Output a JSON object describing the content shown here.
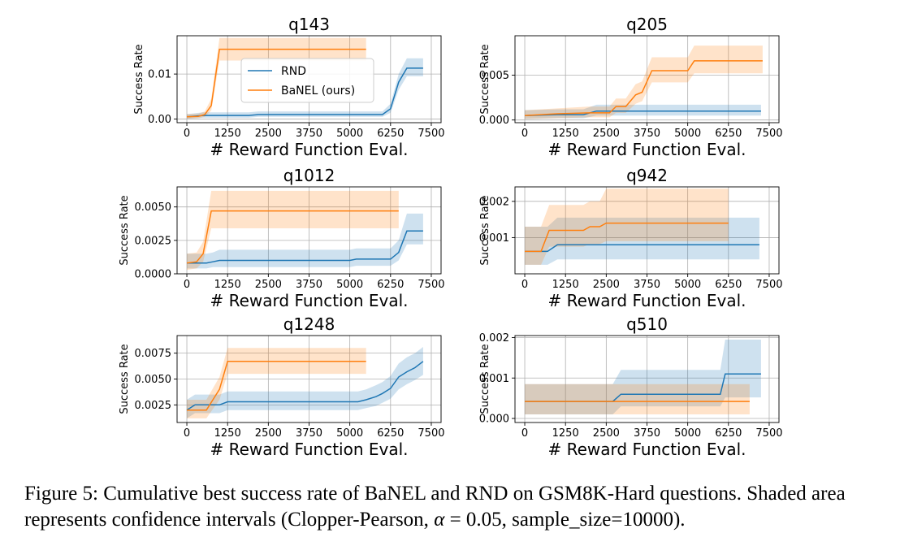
{
  "caption": {
    "label": "Figure 5:",
    "text_a": "Cumulative best success rate of BaNEL and RND on GSM8K-Hard questions. Shaded area represents confidence intervals (Clopper-Pearson, ",
    "alpha": "α",
    "text_b": " = 0.05, sample_size=10000)."
  },
  "colors": {
    "rnd": "#1f77b4",
    "banel": "#ff7f0e",
    "grid": "#b0b0b0"
  },
  "chart_data": [
    {
      "type": "line",
      "title": "q143",
      "xlabel": "# Reward Function Eval.",
      "ylabel": "Success Rate",
      "xlim": [
        -300,
        7800
      ],
      "ylim": [
        -0.0008,
        0.0185
      ],
      "xticks": [
        0,
        1250,
        2500,
        3750,
        5000,
        6250,
        7500
      ],
      "yticks": [
        0.0,
        0.01
      ],
      "ytick_labels": [
        "0.00",
        "0.01"
      ],
      "legend": {
        "position": "center",
        "entries": [
          "RND",
          "BaNEL (ours)"
        ]
      },
      "series": [
        {
          "name": "RND",
          "x": [
            0,
            500,
            1000,
            1900,
            2200,
            3000,
            4000,
            5000,
            6000,
            6250,
            6500,
            6750,
            7250
          ],
          "y": [
            0.0005,
            0.0008,
            0.0008,
            0.0008,
            0.001,
            0.001,
            0.001,
            0.001,
            0.001,
            0.0023,
            0.0082,
            0.0113,
            0.0113
          ],
          "lo": [
            0.0001,
            0.0003,
            0.0003,
            0.0003,
            0.0005,
            0.0005,
            0.0005,
            0.0005,
            0.0005,
            0.0014,
            0.0065,
            0.0095,
            0.0095
          ],
          "hi": [
            0.0011,
            0.0015,
            0.0015,
            0.0015,
            0.0017,
            0.0017,
            0.0017,
            0.0017,
            0.0017,
            0.0034,
            0.01,
            0.0135,
            0.0135
          ]
        },
        {
          "name": "BaNEL (ours)",
          "x": [
            0,
            350,
            550,
            750,
            1000,
            2000,
            3000,
            4000,
            5500
          ],
          "y": [
            0.0005,
            0.0006,
            0.001,
            0.003,
            0.0155,
            0.0155,
            0.0155,
            0.0155,
            0.0155
          ],
          "lo": [
            0.0001,
            0.0002,
            0.0005,
            0.0019,
            0.013,
            0.013,
            0.013,
            0.013,
            0.013
          ],
          "hi": [
            0.0011,
            0.0012,
            0.0017,
            0.0045,
            0.018,
            0.018,
            0.018,
            0.018,
            0.018
          ]
        }
      ]
    },
    {
      "type": "line",
      "title": "q205",
      "xlabel": "# Reward Function Eval.",
      "ylabel": "Success Rate",
      "xlim": [
        -300,
        7800
      ],
      "ylim": [
        -0.0003,
        0.0094
      ],
      "xticks": [
        0,
        1250,
        2500,
        3750,
        5000,
        6250,
        7500
      ],
      "yticks": [
        0.0,
        0.005
      ],
      "ytick_labels": [
        "0.000",
        "0.005"
      ],
      "series": [
        {
          "name": "RND",
          "x": [
            0,
            1000,
            1800,
            2200,
            2600,
            3000,
            7250
          ],
          "y": [
            0.0005,
            0.0006,
            0.0006,
            0.001,
            0.001,
            0.001,
            0.001
          ],
          "lo": [
            0.0001,
            0.0002,
            0.0002,
            0.0005,
            0.0005,
            0.0005,
            0.0005
          ],
          "hi": [
            0.0011,
            0.0012,
            0.0012,
            0.0017,
            0.0017,
            0.0017,
            0.0017
          ]
        },
        {
          "name": "BaNEL (ours)",
          "x": [
            0,
            1000,
            2000,
            2600,
            2800,
            3100,
            3400,
            3600,
            3900,
            4100,
            5000,
            5200,
            7300
          ],
          "y": [
            0.0005,
            0.0007,
            0.0008,
            0.0008,
            0.0015,
            0.0015,
            0.0028,
            0.0031,
            0.0055,
            0.0055,
            0.0055,
            0.0066,
            0.0066
          ],
          "lo": [
            0.0001,
            0.0002,
            0.0003,
            0.0003,
            0.0008,
            0.0008,
            0.0018,
            0.0021,
            0.0042,
            0.0042,
            0.0042,
            0.0052,
            0.0052
          ],
          "hi": [
            0.0011,
            0.0013,
            0.0015,
            0.0015,
            0.0024,
            0.0024,
            0.004,
            0.0043,
            0.007,
            0.007,
            0.007,
            0.0083,
            0.0083
          ]
        }
      ]
    },
    {
      "type": "line",
      "title": "q1012",
      "xlabel": "# Reward Function Eval.",
      "ylabel": "Success Rate",
      "xlim": [
        -300,
        7800
      ],
      "ylim": [
        0.0,
        0.0065
      ],
      "xticks": [
        0,
        1250,
        2500,
        3750,
        5000,
        6250,
        7500
      ],
      "yticks": [
        0.0,
        0.0025,
        0.005
      ],
      "ytick_labels": [
        "0.0000",
        "0.0025",
        "0.0050"
      ],
      "series": [
        {
          "name": "RND",
          "x": [
            0,
            600,
            800,
            1000,
            5000,
            5200,
            6250,
            6500,
            6750,
            7250
          ],
          "y": [
            0.0008,
            0.0008,
            0.0009,
            0.001,
            0.001,
            0.0011,
            0.0011,
            0.0016,
            0.0032,
            0.0032
          ],
          "lo": [
            0.0004,
            0.0004,
            0.0005,
            0.0005,
            0.0005,
            0.0006,
            0.0006,
            0.001,
            0.0022,
            0.0022
          ],
          "hi": [
            0.0015,
            0.0015,
            0.0016,
            0.0018,
            0.0018,
            0.0019,
            0.0019,
            0.0025,
            0.0045,
            0.0045
          ]
        },
        {
          "name": "BaNEL (ours)",
          "x": [
            0,
            300,
            500,
            750,
            2000,
            4000,
            6500
          ],
          "y": [
            0.0008,
            0.0009,
            0.0015,
            0.0047,
            0.0047,
            0.0047,
            0.0047
          ],
          "lo": [
            0.0003,
            0.0004,
            0.0009,
            0.0034,
            0.0034,
            0.0034,
            0.0034
          ],
          "hi": [
            0.0015,
            0.0016,
            0.0024,
            0.0062,
            0.0062,
            0.0062,
            0.0062
          ]
        }
      ]
    },
    {
      "type": "line",
      "title": "q942",
      "xlabel": "# Reward Function Eval.",
      "ylabel": "Success Rate",
      "xlim": [
        -300,
        7800
      ],
      "ylim": [
        0.0,
        0.0024
      ],
      "xticks": [
        0,
        1250,
        2500,
        3750,
        5000,
        6250,
        7500
      ],
      "yticks": [
        0.001,
        0.002
      ],
      "ytick_labels": [
        "0.001",
        "0.002"
      ],
      "series": [
        {
          "name": "RND",
          "x": [
            0,
            700,
            1000,
            1500,
            2500,
            5000,
            7200
          ],
          "y": [
            0.00062,
            0.00062,
            0.0008,
            0.0008,
            0.0008,
            0.0008,
            0.0008
          ],
          "lo": [
            0.00025,
            0.00025,
            0.0004,
            0.0004,
            0.0004,
            0.0004,
            0.0004
          ],
          "hi": [
            0.0013,
            0.0013,
            0.00155,
            0.00155,
            0.00155,
            0.00155,
            0.00155
          ]
        },
        {
          "name": "BaNEL (ours)",
          "x": [
            0,
            500,
            750,
            1800,
            2000,
            2300,
            2500,
            2700,
            4000,
            6250
          ],
          "y": [
            0.00062,
            0.00062,
            0.0012,
            0.0012,
            0.0013,
            0.0013,
            0.0014,
            0.0014,
            0.0014,
            0.0014
          ],
          "lo": [
            0.00025,
            0.00025,
            0.00075,
            0.00075,
            0.00082,
            0.00082,
            0.0009,
            0.0009,
            0.0009,
            0.0009
          ],
          "hi": [
            0.0013,
            0.0013,
            0.0019,
            0.0019,
            0.002,
            0.002,
            0.00235,
            0.00235,
            0.00235,
            0.00235
          ]
        }
      ]
    },
    {
      "type": "line",
      "title": "q1248",
      "xlabel": "# Reward Function Eval.",
      "ylabel": "Success Rate",
      "xlim": [
        -300,
        7800
      ],
      "ylim": [
        0.0008,
        0.0092
      ],
      "xticks": [
        0,
        1250,
        2500,
        3750,
        5000,
        6250,
        7500
      ],
      "yticks": [
        0.0025,
        0.005,
        0.0075
      ],
      "ytick_labels": [
        "0.0025",
        "0.0050",
        "0.0075"
      ],
      "series": [
        {
          "name": "RND",
          "x": [
            0,
            250,
            1000,
            1250,
            2500,
            3750,
            5250,
            5500,
            5800,
            6000,
            6250,
            6500,
            6750,
            7000,
            7250
          ],
          "y": [
            0.002,
            0.0025,
            0.0025,
            0.0028,
            0.0028,
            0.0028,
            0.0028,
            0.003,
            0.0033,
            0.0036,
            0.0041,
            0.0052,
            0.0057,
            0.0061,
            0.0067
          ],
          "lo": [
            0.0012,
            0.0017,
            0.0017,
            0.002,
            0.002,
            0.002,
            0.002,
            0.0022,
            0.0024,
            0.0027,
            0.0031,
            0.004,
            0.0045,
            0.0049,
            0.0054
          ],
          "hi": [
            0.003,
            0.0035,
            0.0035,
            0.0038,
            0.0038,
            0.0038,
            0.0038,
            0.004,
            0.0044,
            0.0047,
            0.0053,
            0.0065,
            0.0071,
            0.0075,
            0.0081
          ]
        },
        {
          "name": "BaNEL (ours)",
          "x": [
            0,
            150,
            600,
            800,
            1000,
            1250,
            2000,
            4000,
            5500
          ],
          "y": [
            0.002,
            0.002,
            0.002,
            0.003,
            0.004,
            0.0067,
            0.0067,
            0.0067,
            0.0067
          ],
          "lo": [
            0.0012,
            0.0012,
            0.0012,
            0.0021,
            0.003,
            0.0055,
            0.0055,
            0.0055,
            0.0055
          ],
          "hi": [
            0.003,
            0.003,
            0.003,
            0.0041,
            0.0052,
            0.008,
            0.008,
            0.008,
            0.008
          ]
        }
      ]
    },
    {
      "type": "line",
      "title": "q510",
      "xlabel": "# Reward Function Eval.",
      "ylabel": "Success Rate",
      "xlim": [
        -300,
        7800
      ],
      "ylim": [
        -0.0001,
        0.00205
      ],
      "xticks": [
        0,
        1250,
        2500,
        3750,
        5000,
        6250,
        7500
      ],
      "yticks": [
        0.0,
        0.001,
        0.002
      ],
      "ytick_labels": [
        "0.000",
        "0.001",
        "0.002"
      ],
      "series": [
        {
          "name": "RND",
          "x": [
            0,
            1000,
            2000,
            2700,
            2950,
            3250,
            5000,
            6000,
            6150,
            7250
          ],
          "y": [
            0.00042,
            0.00042,
            0.00042,
            0.00042,
            0.0006,
            0.0006,
            0.0006,
            0.0006,
            0.0011,
            0.0011
          ],
          "lo": [
            0.0001,
            0.0001,
            0.0001,
            0.0001,
            0.0003,
            0.0003,
            0.0003,
            0.0003,
            0.00052,
            0.00052
          ],
          "hi": [
            0.00085,
            0.00085,
            0.00085,
            0.00085,
            0.0012,
            0.0012,
            0.0012,
            0.0012,
            0.00195,
            0.00195
          ]
        },
        {
          "name": "BaNEL (ours)",
          "x": [
            0,
            2000,
            4000,
            6900
          ],
          "y": [
            0.00042,
            0.00042,
            0.00042,
            0.00042
          ],
          "lo": [
            0.0001,
            0.0001,
            0.0001,
            0.0001
          ],
          "hi": [
            0.00085,
            0.00085,
            0.00085,
            0.00085
          ]
        }
      ]
    }
  ]
}
